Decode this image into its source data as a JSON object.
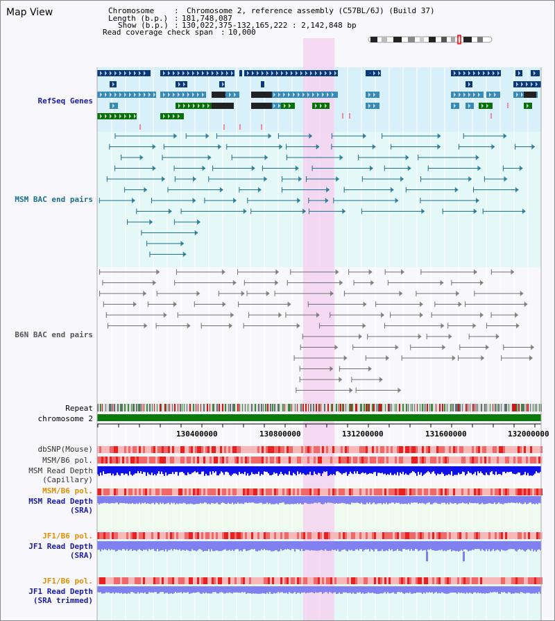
{
  "title": "Map View",
  "info": {
    "chromosome_key": "Chromosome",
    "chromosome_val": "Chromosome 2, reference assembly (C57BL/6J) (Build 37)",
    "length_key": "Length (b.p.)",
    "length_val": "181,748,087",
    "show_key": "Show (b.p.)",
    "show_val": "130,022,375-132,165,222 : 2,142,848 bp",
    "coverage_key": "Read coverage check span",
    "coverage_val": "10,000"
  },
  "tracks": {
    "refseq": "RefSeq Genes",
    "msm_bac": "MSM BAC end pairs",
    "b6n_bac": "B6N BAC end pairs",
    "repeat": "Repeat",
    "chromosome": "chromosome 2",
    "dbsnp": "dbSNP(Mouse)",
    "msm_b6_pol": "MSM/B6 pol.",
    "msm_depth_cap_1": "MSM Read Depth",
    "msm_depth_cap_2": "(Capillary)",
    "msm_b6_pol2": "MSM/B6 pol.",
    "msm_depth_sra_1": "MSM Read Depth",
    "msm_depth_sra_2": "(SRA)",
    "jf1_b6_pol": "JF1/B6 pol.",
    "jf1_depth_sra_1": "JF1 Read Depth",
    "jf1_depth_sra_2": "(SRA)",
    "jf1_b6_pol2": "JF1/B6 pol.",
    "jf1_depth_trim_1": "JF1 Read Depth",
    "jf1_depth_trim_2": "(SRA trimmed)"
  },
  "axis_ticks": [
    "130400000",
    "130800000",
    "131200000",
    "131600000",
    "132000000"
  ],
  "colors": {
    "refseq_dark": "#0a3a78",
    "refseq_mid": "#3a8ab8",
    "refseq_green": "#0a6e0a",
    "msm_pair": "#1a6e8e",
    "b6n_pair": "#707070",
    "highlight": "#f4d4f0",
    "snp": "#f06060",
    "depth_dark": "#1010e8",
    "depth_light": "#8080f0"
  }
}
